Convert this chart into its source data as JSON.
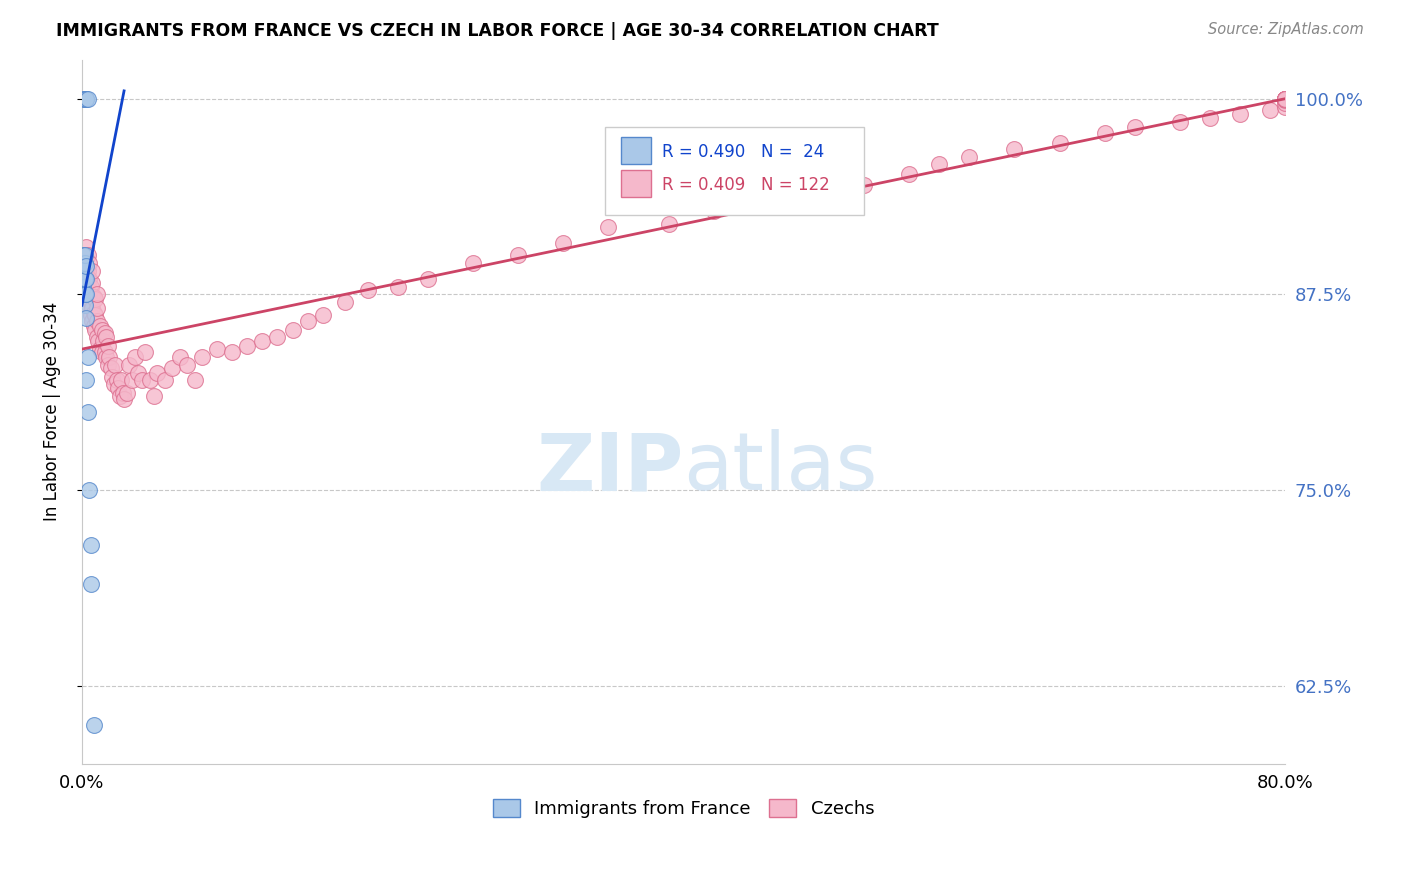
{
  "title": "IMMIGRANTS FROM FRANCE VS CZECH IN LABOR FORCE | AGE 30-34 CORRELATION CHART",
  "source": "Source: ZipAtlas.com",
  "ylabel": "In Labor Force | Age 30-34",
  "xlim": [
    0.0,
    0.8
  ],
  "ylim": [
    0.575,
    1.025
  ],
  "xticks": [
    0.0,
    0.1,
    0.2,
    0.3,
    0.4,
    0.5,
    0.6,
    0.7,
    0.8
  ],
  "yticks": [
    0.625,
    0.75,
    0.875,
    1.0
  ],
  "yticklabels": [
    "62.5%",
    "75.0%",
    "87.5%",
    "100.0%"
  ],
  "right_ytick_color": "#4472c4",
  "grid_color": "#c8c8c8",
  "background": "#ffffff",
  "france_color": "#aac8e8",
  "france_edge_color": "#5588cc",
  "czech_color": "#f5b8cb",
  "czech_edge_color": "#dd7090",
  "france_line_color": "#1144cc",
  "czech_line_color": "#cc4466",
  "france_R": 0.49,
  "france_N": 24,
  "czech_R": 0.409,
  "czech_N": 122,
  "watermark_color": "#d8e8f5",
  "france_x": [
    0.001,
    0.001,
    0.001,
    0.001,
    0.002,
    0.002,
    0.002,
    0.002,
    0.002,
    0.002,
    0.003,
    0.003,
    0.003,
    0.003,
    0.003,
    0.003,
    0.003,
    0.004,
    0.004,
    0.004,
    0.005,
    0.006,
    0.006,
    0.008
  ],
  "france_y": [
    0.88,
    0.895,
    0.9,
    1.0,
    0.868,
    0.875,
    0.885,
    0.895,
    0.9,
    1.0,
    0.82,
    0.86,
    0.875,
    0.885,
    0.893,
    1.0,
    1.0,
    0.8,
    0.835,
    1.0,
    0.75,
    0.69,
    0.715,
    0.6
  ],
  "czech_x": [
    0.001,
    0.001,
    0.001,
    0.002,
    0.002,
    0.002,
    0.002,
    0.003,
    0.003,
    0.003,
    0.003,
    0.003,
    0.003,
    0.004,
    0.004,
    0.004,
    0.004,
    0.004,
    0.005,
    0.005,
    0.005,
    0.005,
    0.006,
    0.006,
    0.006,
    0.007,
    0.007,
    0.007,
    0.007,
    0.007,
    0.008,
    0.008,
    0.008,
    0.009,
    0.009,
    0.009,
    0.01,
    0.01,
    0.01,
    0.01,
    0.011,
    0.012,
    0.012,
    0.013,
    0.013,
    0.014,
    0.015,
    0.015,
    0.016,
    0.016,
    0.017,
    0.017,
    0.018,
    0.019,
    0.02,
    0.021,
    0.022,
    0.023,
    0.024,
    0.025,
    0.026,
    0.027,
    0.028,
    0.03,
    0.031,
    0.033,
    0.035,
    0.037,
    0.04,
    0.042,
    0.045,
    0.048,
    0.05,
    0.055,
    0.06,
    0.065,
    0.07,
    0.075,
    0.08,
    0.09,
    0.1,
    0.11,
    0.12,
    0.13,
    0.14,
    0.15,
    0.16,
    0.175,
    0.19,
    0.21,
    0.23,
    0.26,
    0.29,
    0.32,
    0.35,
    0.39,
    0.42,
    0.46,
    0.49,
    0.52,
    0.55,
    0.57,
    0.59,
    0.62,
    0.65,
    0.68,
    0.7,
    0.73,
    0.75,
    0.77,
    0.79,
    0.8,
    0.8,
    0.8,
    0.8,
    0.8,
    0.8,
    0.8,
    0.8,
    0.8,
    0.8,
    0.8
  ],
  "czech_y": [
    0.87,
    0.885,
    0.9,
    0.875,
    0.885,
    0.895,
    0.9,
    0.868,
    0.875,
    0.882,
    0.89,
    0.898,
    0.905,
    0.868,
    0.875,
    0.882,
    0.89,
    0.9,
    0.868,
    0.875,
    0.885,
    0.895,
    0.862,
    0.87,
    0.88,
    0.858,
    0.866,
    0.874,
    0.882,
    0.89,
    0.855,
    0.863,
    0.873,
    0.852,
    0.862,
    0.872,
    0.848,
    0.858,
    0.866,
    0.875,
    0.845,
    0.84,
    0.855,
    0.838,
    0.852,
    0.845,
    0.838,
    0.85,
    0.835,
    0.848,
    0.83,
    0.842,
    0.835,
    0.828,
    0.822,
    0.818,
    0.83,
    0.82,
    0.815,
    0.81,
    0.82,
    0.812,
    0.808,
    0.812,
    0.83,
    0.82,
    0.835,
    0.825,
    0.82,
    0.838,
    0.82,
    0.81,
    0.825,
    0.82,
    0.828,
    0.835,
    0.83,
    0.82,
    0.835,
    0.84,
    0.838,
    0.842,
    0.845,
    0.848,
    0.852,
    0.858,
    0.862,
    0.87,
    0.878,
    0.88,
    0.885,
    0.895,
    0.9,
    0.908,
    0.918,
    0.92,
    0.928,
    0.935,
    0.94,
    0.945,
    0.952,
    0.958,
    0.963,
    0.968,
    0.972,
    0.978,
    0.982,
    0.985,
    0.988,
    0.99,
    0.993,
    0.995,
    0.997,
    0.999,
    1.0,
    1.0,
    1.0,
    1.0,
    1.0,
    1.0,
    1.0,
    1.0
  ],
  "france_line_x0": 0.0,
  "france_line_y0": 0.868,
  "france_line_x1": 0.028,
  "france_line_y1": 1.005,
  "czech_line_x0": 0.0,
  "czech_line_y0": 0.84,
  "czech_line_x1": 0.8,
  "czech_line_y1": 1.0
}
